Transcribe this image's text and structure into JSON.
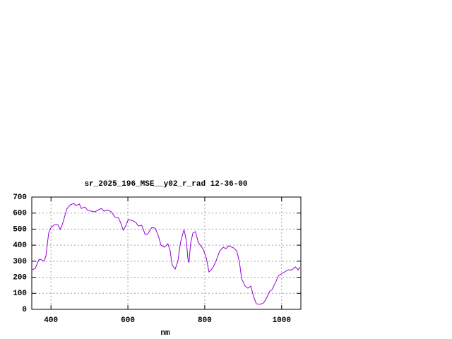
{
  "chart_data": {
    "type": "line",
    "title": "sr_2025_196_MSE__y02_r_rad 12-36-00",
    "x_label": "nm",
    "x": [
      350,
      359,
      368,
      372,
      382,
      387,
      394,
      400,
      409,
      418,
      424,
      431,
      441,
      450,
      459,
      465,
      474,
      479,
      488,
      496,
      505,
      514,
      523,
      531,
      538,
      547,
      557,
      566,
      575,
      581,
      588,
      594,
      601,
      612,
      621,
      627,
      636,
      645,
      652,
      662,
      671,
      680,
      686,
      695,
      704,
      710,
      715,
      723,
      730,
      737,
      746,
      752,
      756,
      759,
      763,
      769,
      776,
      783,
      796,
      804,
      811,
      820,
      829,
      839,
      848,
      855,
      862,
      875,
      883,
      890,
      896,
      905,
      912,
      920,
      927,
      934,
      944,
      953,
      960,
      968,
      975,
      984,
      992,
      999,
      1008,
      1017,
      1027,
      1036,
      1043,
      1047
    ],
    "values": [
      246,
      255,
      308,
      312,
      300,
      334,
      475,
      510,
      528,
      528,
      497,
      541,
      625,
      651,
      660,
      647,
      656,
      629,
      638,
      616,
      612,
      607,
      620,
      629,
      612,
      620,
      607,
      576,
      572,
      541,
      493,
      519,
      559,
      554,
      541,
      519,
      524,
      466,
      471,
      510,
      506,
      453,
      400,
      387,
      409,
      365,
      277,
      251,
      299,
      418,
      497,
      431,
      317,
      290,
      409,
      475,
      484,
      418,
      374,
      321,
      233,
      255,
      299,
      365,
      387,
      378,
      396,
      383,
      365,
      299,
      189,
      145,
      132,
      145,
      79,
      35,
      31,
      40,
      66,
      110,
      123,
      167,
      211,
      220,
      233,
      246,
      246,
      264,
      246,
      264
    ],
    "color": "#9400d3",
    "xlim": [
      350,
      1050
    ],
    "xticks": [
      400,
      600,
      800,
      1000
    ],
    "ylim": [
      0,
      700
    ],
    "yticks": [
      0,
      100,
      200,
      300,
      400,
      500,
      600,
      700
    ],
    "grid": true
  }
}
